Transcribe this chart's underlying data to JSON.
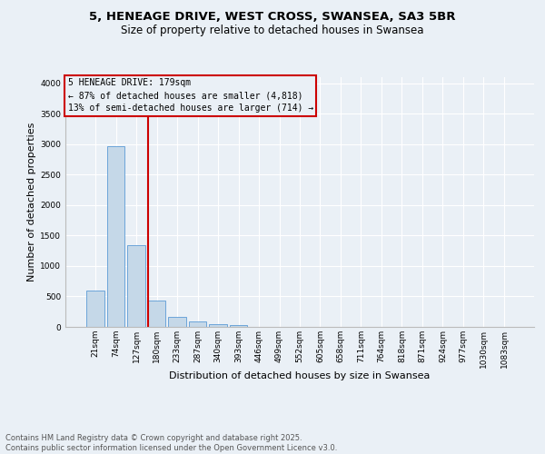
{
  "title1": "5, HENEAGE DRIVE, WEST CROSS, SWANSEA, SA3 5BR",
  "title2": "Size of property relative to detached houses in Swansea",
  "xlabel": "Distribution of detached houses by size in Swansea",
  "ylabel": "Number of detached properties",
  "categories": [
    "21sqm",
    "74sqm",
    "127sqm",
    "180sqm",
    "233sqm",
    "287sqm",
    "340sqm",
    "393sqm",
    "446sqm",
    "499sqm",
    "552sqm",
    "605sqm",
    "658sqm",
    "711sqm",
    "764sqm",
    "818sqm",
    "871sqm",
    "924sqm",
    "977sqm",
    "1030sqm",
    "1083sqm"
  ],
  "values": [
    590,
    2970,
    1340,
    430,
    160,
    90,
    45,
    28,
    5,
    0,
    0,
    0,
    0,
    0,
    0,
    0,
    0,
    0,
    0,
    0,
    0
  ],
  "bar_color": "#c5d8e8",
  "bar_edge_color": "#5b9bd5",
  "marker_bin_index": 3,
  "marker_label": "5 HENEAGE DRIVE: 179sqm",
  "marker_line_color": "#cc0000",
  "annotation_line1": "← 87% of detached houses are smaller (4,818)",
  "annotation_line2": "13% of semi-detached houses are larger (714) →",
  "box_edge_color": "#cc0000",
  "ylim": [
    0,
    4100
  ],
  "yticks": [
    0,
    500,
    1000,
    1500,
    2000,
    2500,
    3000,
    3500,
    4000
  ],
  "background_color": "#eaf0f6",
  "grid_color": "#ffffff",
  "footer": "Contains HM Land Registry data © Crown copyright and database right 2025.\nContains public sector information licensed under the Open Government Licence v3.0.",
  "title_fontsize": 9.5,
  "subtitle_fontsize": 8.5,
  "axis_label_fontsize": 8,
  "tick_fontsize": 6.5,
  "annotation_fontsize": 7,
  "footer_fontsize": 6
}
